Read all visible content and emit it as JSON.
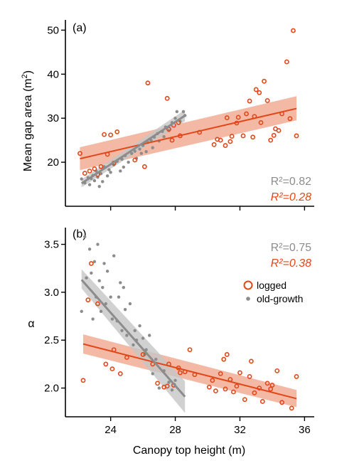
{
  "colors": {
    "logged": "#e2471a",
    "old_growth": "#8c8c8c",
    "logged_band": "#f0a286",
    "old_growth_band": "#c6c6c6"
  },
  "chart_data": [
    {
      "type": "scatter",
      "panel_label": "(a)",
      "ylabel": "Mean gap area (m",
      "ylabel_sup": "2",
      "ylabel_close": ")",
      "xlim": [
        21.2,
        36.6
      ],
      "ylim": [
        10,
        52
      ],
      "yticks": [
        "20",
        "30",
        "40",
        "50"
      ],
      "ytick_values": [
        20,
        30,
        40,
        50
      ],
      "r2_old_growth": "R²=0.82",
      "r2_logged": "R²=0.28",
      "series": [
        {
          "key": "logged",
          "marker": "open-circle",
          "points": [
            [
              22.1,
              22.0
            ],
            [
              22.7,
              18.0
            ],
            [
              22.4,
              17.5
            ],
            [
              23.0,
              18.5
            ],
            [
              23.4,
              19.0
            ],
            [
              23.2,
              17.2
            ],
            [
              23.6,
              26.3
            ],
            [
              24.0,
              26.2
            ],
            [
              24.4,
              26.9
            ],
            [
              24.2,
              19.8
            ],
            [
              23.8,
              21.8
            ],
            [
              25.5,
              20.5
            ],
            [
              26.1,
              19.0
            ],
            [
              26.3,
              38.0
            ],
            [
              27.5,
              34.5
            ],
            [
              27.6,
              27.5
            ],
            [
              27.9,
              28.4
            ],
            [
              28.2,
              29.0
            ],
            [
              28.3,
              26.0
            ],
            [
              27.8,
              25.0
            ],
            [
              29.5,
              26.8
            ],
            [
              30.4,
              24.0
            ],
            [
              30.8,
              25.0
            ],
            [
              31.1,
              23.8
            ],
            [
              31.2,
              30.1
            ],
            [
              31.5,
              25.9
            ],
            [
              31.8,
              28.9
            ],
            [
              31.9,
              30.2
            ],
            [
              32.2,
              26.0
            ],
            [
              32.4,
              31.0
            ],
            [
              32.6,
              33.9
            ],
            [
              32.9,
              30.4
            ],
            [
              33.0,
              36.5
            ],
            [
              33.2,
              35.8
            ],
            [
              33.5,
              38.4
            ],
            [
              33.7,
              34.0
            ],
            [
              33.9,
              25.0
            ],
            [
              34.1,
              26.1
            ],
            [
              34.4,
              27.2
            ],
            [
              34.6,
              31.0
            ],
            [
              34.9,
              42.8
            ],
            [
              35.1,
              29.9
            ],
            [
              35.3,
              49.9
            ],
            [
              35.5,
              26.0
            ],
            [
              30.6,
              25.2
            ],
            [
              32.8,
              25.7
            ],
            [
              33.3,
              29.0
            ],
            [
              34.2,
              27.6
            ],
            [
              31.4,
              24.7
            ]
          ]
        },
        {
          "key": "old_growth",
          "marker": "dot",
          "points": [
            [
              22.2,
              16.2
            ],
            [
              22.4,
              15.3
            ],
            [
              22.6,
              16.5
            ],
            [
              22.7,
              14.9
            ],
            [
              22.9,
              17.0
            ],
            [
              23.0,
              15.8
            ],
            [
              23.1,
              18.0
            ],
            [
              23.2,
              16.6
            ],
            [
              23.4,
              17.4
            ],
            [
              23.5,
              15.6
            ],
            [
              23.6,
              19.0
            ],
            [
              23.8,
              16.9
            ],
            [
              23.9,
              18.3
            ],
            [
              24.0,
              17.7
            ],
            [
              24.2,
              19.4
            ],
            [
              24.4,
              20.2
            ],
            [
              24.6,
              18.0
            ],
            [
              24.7,
              20.7
            ],
            [
              24.9,
              21.5
            ],
            [
              25.1,
              20.0
            ],
            [
              25.3,
              22.0
            ],
            [
              25.5,
              22.5
            ],
            [
              25.6,
              20.9
            ],
            [
              25.8,
              23.0
            ],
            [
              26.0,
              23.8
            ],
            [
              26.2,
              22.4
            ],
            [
              26.3,
              24.5
            ],
            [
              26.5,
              25.0
            ],
            [
              26.7,
              25.7
            ],
            [
              26.9,
              26.5
            ],
            [
              27.0,
              24.8
            ],
            [
              27.2,
              27.0
            ],
            [
              27.4,
              28.0
            ],
            [
              27.6,
              27.2
            ],
            [
              27.8,
              29.0
            ],
            [
              28.0,
              30.0
            ],
            [
              28.1,
              31.5
            ],
            [
              28.3,
              29.3
            ],
            [
              28.5,
              31.5
            ],
            [
              28.6,
              30.6
            ],
            [
              22.8,
              16.3
            ],
            [
              23.3,
              14.5
            ],
            [
              24.8,
              18.9
            ],
            [
              25.9,
              22.0
            ],
            [
              27.3,
              25.8
            ],
            [
              26.6,
              23.3
            ]
          ]
        }
      ],
      "fits": [
        {
          "key": "logged",
          "x": [
            22.1,
            35.5
          ],
          "y": [
            20.8,
            32.2
          ],
          "band_lo": [
            18.2,
            29.5
          ],
          "band_hi": [
            23.4,
            35.0
          ]
        },
        {
          "key": "old_growth",
          "x": [
            22.2,
            28.6
          ],
          "y": [
            15.2,
            30.6
          ],
          "band_lo": [
            14.3,
            29.3
          ],
          "band_hi": [
            16.1,
            31.9
          ]
        }
      ]
    },
    {
      "type": "scatter",
      "panel_label": "(b)",
      "ylabel": "α",
      "xlabel": "Canopy top height (m)",
      "xlim": [
        21.2,
        36.6
      ],
      "ylim": [
        1.7,
        3.66
      ],
      "xticks": [
        "24",
        "28",
        "32",
        "36"
      ],
      "xtick_values": [
        24,
        28,
        32,
        36
      ],
      "yticks": [
        "2.0",
        "2.5",
        "3.0",
        "3.5"
      ],
      "ytick_values": [
        2.0,
        2.5,
        3.0,
        3.5
      ],
      "r2_old_growth": "R²=0.75",
      "r2_logged": "R²=0.38",
      "legend": [
        "logged",
        "old-growth"
      ],
      "series": [
        {
          "key": "logged",
          "marker": "open-circle",
          "points": [
            [
              22.3,
              2.08
            ],
            [
              22.8,
              3.3
            ],
            [
              22.6,
              2.92
            ],
            [
              23.2,
              2.88
            ],
            [
              23.7,
              2.25
            ],
            [
              24.1,
              2.2
            ],
            [
              24.2,
              2.4
            ],
            [
              24.6,
              2.15
            ],
            [
              25.0,
              2.32
            ],
            [
              26.0,
              2.35
            ],
            [
              26.6,
              2.25
            ],
            [
              26.9,
              2.05
            ],
            [
              27.3,
              2.01
            ],
            [
              27.5,
              2.02
            ],
            [
              27.6,
              2.25
            ],
            [
              27.9,
              2.03
            ],
            [
              28.2,
              2.21
            ],
            [
              28.6,
              2.17
            ],
            [
              28.9,
              2.4
            ],
            [
              29.2,
              2.14
            ],
            [
              30.1,
              2.01
            ],
            [
              30.5,
              1.97
            ],
            [
              30.8,
              2.15
            ],
            [
              31.0,
              2.3
            ],
            [
              31.1,
              1.99
            ],
            [
              31.2,
              2.35
            ],
            [
              31.4,
              2.09
            ],
            [
              31.8,
              2.02
            ],
            [
              32.0,
              2.16
            ],
            [
              32.3,
              1.88
            ],
            [
              32.6,
              2.12
            ],
            [
              32.9,
              1.95
            ],
            [
              33.2,
              2.0
            ],
            [
              33.4,
              1.86
            ],
            [
              33.7,
              2.05
            ],
            [
              34.0,
              2.03
            ],
            [
              34.3,
              2.18
            ],
            [
              34.6,
              1.85
            ],
            [
              35.2,
              1.79
            ],
            [
              35.5,
              2.12
            ],
            [
              32.7,
              2.28
            ],
            [
              30.3,
              2.08
            ],
            [
              33.9,
              1.99
            ],
            [
              28.3,
              2.16
            ],
            [
              31.6,
              1.96
            ]
          ]
        },
        {
          "key": "old_growth",
          "marker": "dot",
          "points": [
            [
              22.2,
              2.8
            ],
            [
              22.4,
              3.58
            ],
            [
              22.5,
              3.15
            ],
            [
              22.7,
              3.45
            ],
            [
              22.8,
              3.2
            ],
            [
              23.0,
              3.32
            ],
            [
              23.1,
              2.95
            ],
            [
              23.2,
              3.5
            ],
            [
              23.4,
              2.8
            ],
            [
              23.5,
              3.05
            ],
            [
              23.7,
              2.88
            ],
            [
              23.8,
              3.22
            ],
            [
              24.0,
              2.95
            ],
            [
              24.1,
              2.72
            ],
            [
              24.2,
              3.38
            ],
            [
              24.4,
              2.7
            ],
            [
              24.6,
              3.1
            ],
            [
              24.7,
              2.6
            ],
            [
              24.8,
              3.05
            ],
            [
              25.0,
              2.55
            ],
            [
              25.2,
              2.88
            ],
            [
              25.4,
              2.45
            ],
            [
              25.6,
              2.5
            ],
            [
              25.8,
              2.65
            ],
            [
              26.0,
              2.52
            ],
            [
              26.2,
              2.4
            ],
            [
              26.4,
              2.55
            ],
            [
              26.6,
              2.15
            ],
            [
              26.8,
              2.3
            ],
            [
              27.0,
              2.0
            ],
            [
              27.3,
              2.18
            ],
            [
              27.6,
              2.06
            ],
            [
              27.8,
              1.98
            ],
            [
              28.0,
              2.08
            ],
            [
              22.9,
              2.72
            ],
            [
              23.6,
              3.3
            ],
            [
              24.5,
              2.95
            ],
            [
              25.5,
              2.6
            ],
            [
              26.1,
              2.35
            ],
            [
              24.9,
              2.82
            ],
            [
              23.3,
              3.12
            ]
          ]
        }
      ],
      "fits": [
        {
          "key": "logged",
          "x": [
            22.3,
            35.5
          ],
          "y": [
            2.46,
            1.89
          ],
          "band_lo": [
            2.36,
            1.8
          ],
          "band_hi": [
            2.56,
            1.98
          ]
        },
        {
          "key": "old_growth",
          "x": [
            22.2,
            28.6
          ],
          "y": [
            3.13,
            1.91
          ],
          "band_lo": [
            3.04,
            1.74
          ],
          "band_hi": [
            3.24,
            2.07
          ]
        }
      ]
    }
  ]
}
